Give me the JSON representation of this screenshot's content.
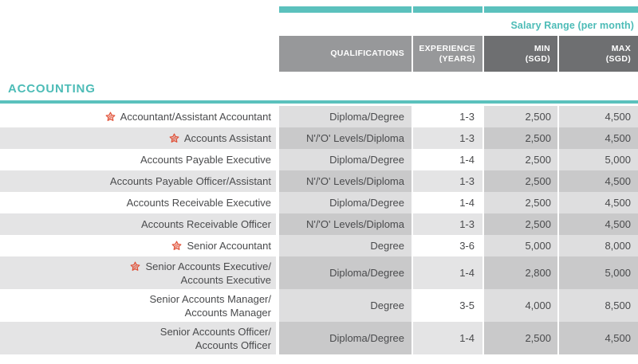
{
  "salary_range_label": "Salary Range (per month)",
  "column_headers": {
    "qualifications": "QUALIFICATIONS",
    "experience_line1": "EXPERIENCE",
    "experience_line2": "(YEARS)",
    "min_line1": "MIN",
    "min_line2": "(SGD)",
    "max_line1": "MAX",
    "max_line2": "(SGD)"
  },
  "section_title": "ACCOUNTING",
  "rows": [
    {
      "starred": true,
      "title_lines": [
        "Accountant/Assistant Accountant"
      ],
      "qualifications": "Diploma/Degree",
      "experience": "1-3",
      "min": "2,500",
      "max": "4,500"
    },
    {
      "starred": true,
      "title_lines": [
        "Accounts Assistant"
      ],
      "qualifications": "N'/'O' Levels/Diploma",
      "experience": "1-3",
      "min": "2,500",
      "max": "4,500"
    },
    {
      "starred": false,
      "title_lines": [
        "Accounts Payable Executive"
      ],
      "qualifications": "Diploma/Degree",
      "experience": "1-4",
      "min": "2,500",
      "max": "5,000"
    },
    {
      "starred": false,
      "title_lines": [
        "Accounts Payable Officer/Assistant"
      ],
      "qualifications": "N'/'O' Levels/Diploma",
      "experience": "1-3",
      "min": "2,500",
      "max": "4,500"
    },
    {
      "starred": false,
      "title_lines": [
        "Accounts Receivable Executive"
      ],
      "qualifications": "Diploma/Degree",
      "experience": "1-4",
      "min": "2,500",
      "max": "4,500"
    },
    {
      "starred": false,
      "title_lines": [
        "Accounts Receivable Officer"
      ],
      "qualifications": "N'/'O' Levels/Diploma",
      "experience": "1-3",
      "min": "2,500",
      "max": "4,500"
    },
    {
      "starred": true,
      "title_lines": [
        "Senior Accountant"
      ],
      "qualifications": "Degree",
      "experience": "3-6",
      "min": "5,000",
      "max": "8,000"
    },
    {
      "starred": true,
      "title_lines": [
        "Senior Accounts Executive/",
        "Accounts Executive"
      ],
      "qualifications": "Diploma/Degree",
      "experience": "1-4",
      "min": "2,800",
      "max": "5,000"
    },
    {
      "starred": false,
      "title_lines": [
        "Senior Accounts Manager/",
        "Accounts Manager"
      ],
      "qualifications": "Degree",
      "experience": "3-5",
      "min": "4,000",
      "max": "8,500"
    },
    {
      "starred": false,
      "title_lines": [
        "Senior Accounts Officer/",
        "Accounts Officer"
      ],
      "qualifications": "Diploma/Degree",
      "experience": "1-4",
      "min": "2,500",
      "max": "4,500"
    }
  ],
  "icons": {
    "starred_role": "star-icon"
  },
  "colors": {
    "teal": "#5bc1bd",
    "teal_text": "#4dbcb7",
    "header_light_gray": "#97989a",
    "header_dark_gray": "#6e6f71",
    "row_alt_gray": "#e4e4e5",
    "cell_tint_light": "#dededf",
    "cell_tint_dark": "#c9c9ca",
    "star_red": "#e04b31",
    "text": "#4a4b4d"
  }
}
